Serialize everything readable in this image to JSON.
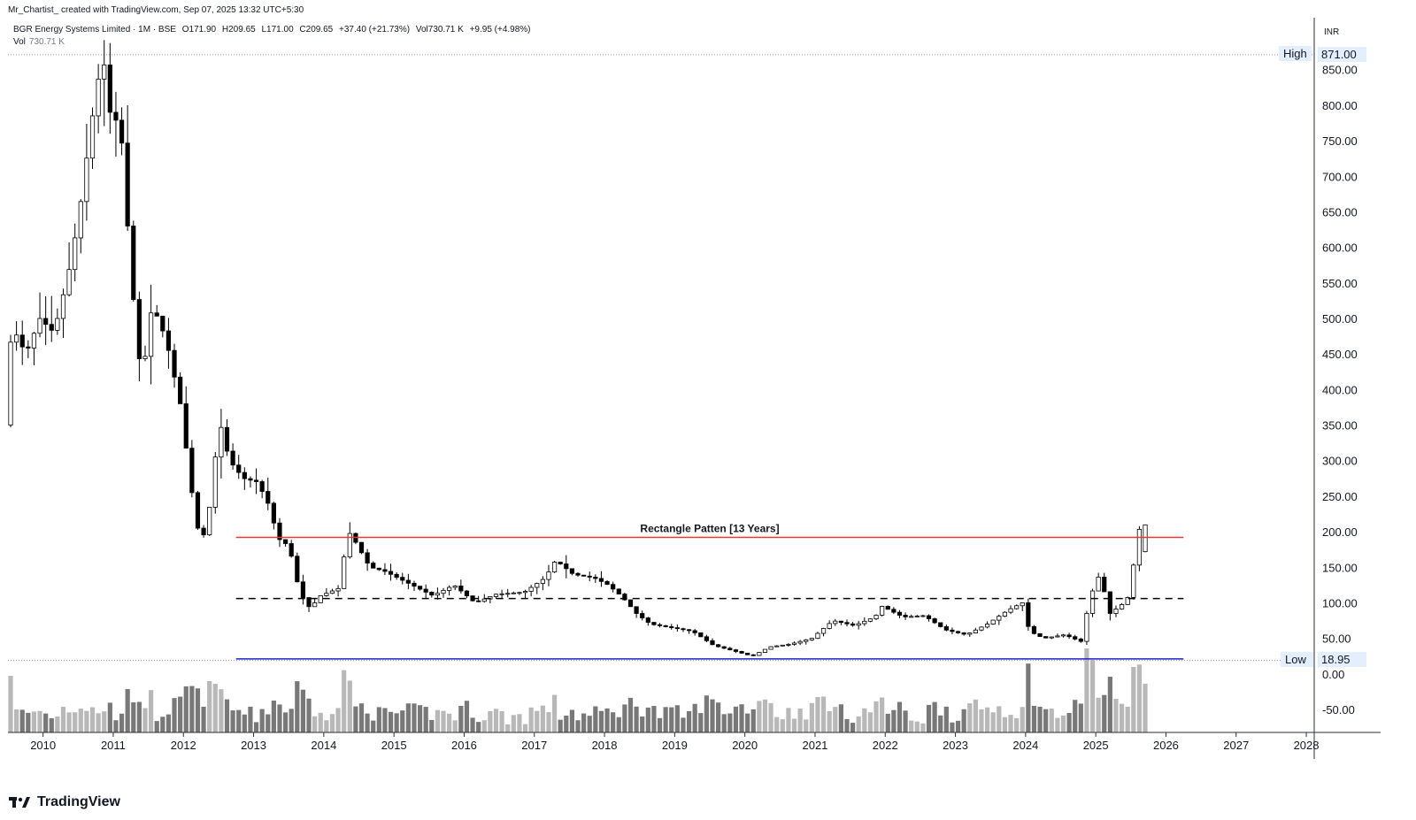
{
  "header": {
    "author_line": "Mr_Chartist_ created with TradingView.com, Sep 07, 2025 13:32 UTC+5:30"
  },
  "legend": {
    "symbol": "BGR Energy Systems Limited · 1M · BSE",
    "ohlc": [
      "O171.90",
      "H209.65",
      "L171.00",
      "C209.65",
      "+37.40 (+21.73%)"
    ],
    "volume": "Vol730.71 K",
    "volume_change": "+9.95 (+4.98%)",
    "vol_label": "Vol",
    "vol_value": "730.71 K"
  },
  "axis": {
    "currency": "INR",
    "high_label": "High",
    "high_value": "871.00",
    "low_label": "Low",
    "low_value": "18.95"
  },
  "logo": {
    "text": "TradingView"
  },
  "colors": {
    "up": "#ffffff",
    "down": "#000000",
    "outline": "#000000",
    "resistance": "#e53935",
    "support": "#1e22c9",
    "vol_dark": "#787878",
    "vol_light": "#b8b8b8"
  },
  "chart_data": {
    "type": "candlestick",
    "title": "",
    "timeframe": "1M",
    "y_ticks": [
      850,
      800,
      750,
      700,
      650,
      600,
      550,
      500,
      450,
      400,
      350,
      300,
      250,
      200,
      150,
      100,
      50,
      0,
      -50
    ],
    "y_tick_labels": [
      "850.00",
      "800.00",
      "750.00",
      "700.00",
      "650.00",
      "600.00",
      "550.00",
      "500.00",
      "450.00",
      "400.00",
      "350.00",
      "300.00",
      "250.00",
      "200.00",
      "150.00",
      "100.00",
      "50.00",
      "0.00",
      "-50.00"
    ],
    "x_ticks": [
      "2010",
      "2011",
      "2012",
      "2013",
      "2014",
      "2015",
      "2016",
      "2017",
      "2018",
      "2019",
      "2020",
      "2021",
      "2022",
      "2023",
      "2024",
      "2025",
      "2026",
      "2027",
      "2028"
    ],
    "annotations": [
      {
        "type": "hline",
        "style": "solid",
        "color": "red",
        "value": 192,
        "from": 2012.75,
        "to": 2026.25,
        "label": "Rectangle Patten [13 Years]"
      },
      {
        "type": "hline",
        "style": "dashed",
        "color": "black",
        "value": 106,
        "from": 2012.75,
        "to": 2026.25
      },
      {
        "type": "hline",
        "style": "solid",
        "color": "blue",
        "value": 21,
        "from": 2012.75,
        "to": 2026.25
      }
    ],
    "anchors": [
      [
        2009.5,
        350
      ],
      [
        2009.6,
        490
      ],
      [
        2009.8,
        450
      ],
      [
        2010.0,
        500
      ],
      [
        2010.2,
        480
      ],
      [
        2010.4,
        560
      ],
      [
        2010.55,
        640
      ],
      [
        2010.7,
        750
      ],
      [
        2010.8,
        820
      ],
      [
        2010.9,
        870
      ],
      [
        2011.0,
        790
      ],
      [
        2011.15,
        770
      ],
      [
        2011.3,
        560
      ],
      [
        2011.45,
        410
      ],
      [
        2011.6,
        520
      ],
      [
        2011.8,
        470
      ],
      [
        2012.0,
        380
      ],
      [
        2012.2,
        230
      ],
      [
        2012.3,
        180
      ],
      [
        2012.45,
        250
      ],
      [
        2012.55,
        360
      ],
      [
        2012.7,
        300
      ],
      [
        2012.9,
        275
      ],
      [
        2013.1,
        270
      ],
      [
        2013.25,
        240
      ],
      [
        2013.4,
        190
      ],
      [
        2013.55,
        180
      ],
      [
        2013.7,
        115
      ],
      [
        2013.85,
        92
      ],
      [
        2014.0,
        110
      ],
      [
        2014.25,
        120
      ],
      [
        2014.4,
        200
      ],
      [
        2014.5,
        185
      ],
      [
        2014.7,
        150
      ],
      [
        2014.9,
        145
      ],
      [
        2015.2,
        130
      ],
      [
        2015.6,
        110
      ],
      [
        2015.9,
        125
      ],
      [
        2016.2,
        100
      ],
      [
        2016.5,
        112
      ],
      [
        2016.9,
        115
      ],
      [
        2017.2,
        135
      ],
      [
        2017.35,
        160
      ],
      [
        2017.6,
        140
      ],
      [
        2017.9,
        135
      ],
      [
        2018.1,
        125
      ],
      [
        2018.3,
        108
      ],
      [
        2018.5,
        85
      ],
      [
        2018.7,
        70
      ],
      [
        2019.0,
        65
      ],
      [
        2019.3,
        60
      ],
      [
        2019.6,
        40
      ],
      [
        2019.9,
        32
      ],
      [
        2020.15,
        25
      ],
      [
        2020.4,
        38
      ],
      [
        2020.7,
        42
      ],
      [
        2021.0,
        50
      ],
      [
        2021.3,
        75
      ],
      [
        2021.6,
        68
      ],
      [
        2021.9,
        80
      ],
      [
        2022.0,
        95
      ],
      [
        2022.3,
        80
      ],
      [
        2022.6,
        82
      ],
      [
        2022.9,
        62
      ],
      [
        2023.2,
        55
      ],
      [
        2023.5,
        70
      ],
      [
        2023.8,
        90
      ],
      [
        2024.0,
        100
      ],
      [
        2024.1,
        60
      ],
      [
        2024.3,
        50
      ],
      [
        2024.6,
        55
      ],
      [
        2024.85,
        45
      ],
      [
        2024.95,
        105
      ],
      [
        2025.1,
        140
      ],
      [
        2025.25,
        85
      ],
      [
        2025.45,
        100
      ],
      [
        2025.55,
        115
      ],
      [
        2025.6,
        172
      ],
      [
        2025.68,
        209.65
      ]
    ],
    "last_candle": {
      "open": 171.9,
      "high": 209.65,
      "low": 171.0,
      "close": 209.65,
      "volume": "730.71 K"
    }
  }
}
